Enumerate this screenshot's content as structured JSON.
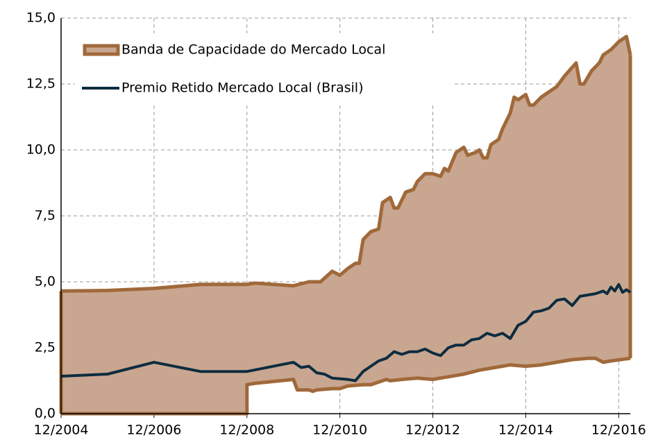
{
  "chart_data": {
    "type": "line",
    "xlim": [
      "12/2004",
      "03/2017"
    ],
    "xticks": [
      "12/2004",
      "12/2006",
      "12/2008",
      "12/2010",
      "12/2012",
      "12/2014",
      "12/2016"
    ],
    "ylim": [
      0,
      15
    ],
    "yticks": [
      {
        "value": 0,
        "label": "0,0"
      },
      {
        "value": 2.5,
        "label": "2,5"
      },
      {
        "value": 5,
        "label": "5,0"
      },
      {
        "value": 7.5,
        "label": "7,5"
      },
      {
        "value": 10,
        "label": "10,0"
      },
      {
        "value": 12.5,
        "label": "12,5"
      },
      {
        "value": 15,
        "label": "15,0"
      }
    ],
    "grid": true,
    "legend": "top-left",
    "series": [
      {
        "name": "Banda de Capacidade do Mercado Local",
        "type": "band",
        "color": "#a0693a",
        "fill": "#c9a690",
        "upper": {
          "x": [
            "12/2004",
            "12/2005",
            "12/2006",
            "12/2007",
            "12/2008",
            "02/2009",
            "12/2009",
            "04/2010",
            "07/2010",
            "10/2010",
            "12/2010",
            "02/2011",
            "04/2011",
            "05/2011",
            "06/2011",
            "08/2011",
            "10/2011",
            "11/2011",
            "01/2012",
            "02/2012",
            "03/2012",
            "05/2012",
            "07/2012",
            "08/2012",
            "10/2012",
            "12/2012",
            "02/2013",
            "03/2013",
            "04/2013",
            "06/2013",
            "08/2013",
            "09/2013",
            "11/2013",
            "12/2013",
            "01/2014",
            "02/2014",
            "03/2014",
            "05/2014",
            "06/2014",
            "08/2014",
            "09/2014",
            "10/2014",
            "12/2014",
            "01/2015",
            "02/2015",
            "04/2015",
            "06/2015",
            "08/2015",
            "10/2015",
            "01/2016",
            "02/2016",
            "03/2016",
            "05/2016",
            "07/2016",
            "08/2016",
            "10/2016",
            "12/2016",
            "02/2017",
            "03/2017"
          ],
          "values": [
            4.65,
            4.67,
            4.75,
            4.9,
            4.9,
            4.95,
            4.85,
            5.0,
            5.0,
            5.4,
            5.25,
            5.5,
            5.7,
            5.7,
            6.6,
            6.9,
            7.0,
            8.0,
            8.2,
            7.8,
            7.8,
            8.4,
            8.5,
            8.8,
            9.1,
            9.1,
            9.0,
            9.3,
            9.2,
            9.9,
            10.1,
            9.8,
            9.9,
            10.0,
            9.7,
            9.7,
            10.2,
            10.4,
            10.8,
            11.4,
            12.0,
            11.9,
            12.1,
            11.7,
            11.7,
            12.0,
            12.2,
            12.4,
            12.8,
            13.3,
            12.5,
            12.5,
            13.0,
            13.3,
            13.6,
            13.8,
            14.1,
            14.3,
            13.6
          ]
        },
        "lower": {
          "x": [
            "12/2004",
            "12/2008",
            "12/2008",
            "02/2009",
            "12/2009",
            "01/2010",
            "04/2010",
            "05/2010",
            "06/2010",
            "10/2010",
            "12/2010",
            "02/2011",
            "06/2011",
            "08/2011",
            "12/2011",
            "01/2012",
            "04/2012",
            "08/2012",
            "12/2012",
            "04/2013",
            "08/2013",
            "12/2013",
            "04/2014",
            "08/2014",
            "12/2014",
            "04/2015",
            "08/2015",
            "12/2015",
            "04/2016",
            "06/2016",
            "08/2016",
            "10/2016",
            "03/2017"
          ],
          "values": [
            0,
            0,
            1.1,
            1.15,
            1.3,
            0.9,
            0.9,
            0.85,
            0.9,
            0.95,
            0.95,
            1.05,
            1.1,
            1.1,
            1.3,
            1.25,
            1.3,
            1.35,
            1.3,
            1.4,
            1.5,
            1.65,
            1.75,
            1.85,
            1.8,
            1.85,
            1.95,
            2.05,
            2.1,
            2.1,
            1.95,
            2.0,
            2.1
          ]
        }
      },
      {
        "name": "Premio Retido Mercado Local (Brasil)",
        "type": "line",
        "color": "#0d2c40",
        "x": [
          "12/2004",
          "12/2005",
          "12/2006",
          "12/2007",
          "12/2008",
          "12/2009",
          "02/2010",
          "04/2010",
          "06/2010",
          "08/2010",
          "10/2010",
          "02/2011",
          "04/2011",
          "06/2011",
          "08/2011",
          "10/2011",
          "12/2011",
          "02/2012",
          "04/2012",
          "06/2012",
          "08/2012",
          "10/2012",
          "12/2012",
          "02/2013",
          "04/2013",
          "06/2013",
          "08/2013",
          "10/2013",
          "12/2013",
          "02/2014",
          "04/2014",
          "06/2014",
          "08/2014",
          "10/2014",
          "12/2014",
          "02/2015",
          "04/2015",
          "06/2015",
          "08/2015",
          "10/2015",
          "12/2015",
          "02/2016",
          "04/2016",
          "06/2016",
          "08/2016",
          "09/2016",
          "10/2016",
          "11/2016",
          "12/2016",
          "01/2017",
          "02/2017",
          "03/2017"
        ],
        "values": [
          1.42,
          1.5,
          1.95,
          1.6,
          1.6,
          1.95,
          1.75,
          1.8,
          1.55,
          1.5,
          1.35,
          1.3,
          1.25,
          1.6,
          1.8,
          2.0,
          2.1,
          2.35,
          2.25,
          2.35,
          2.35,
          2.45,
          2.3,
          2.2,
          2.5,
          2.6,
          2.6,
          2.8,
          2.85,
          3.05,
          2.95,
          3.05,
          2.85,
          3.35,
          3.5,
          3.85,
          3.9,
          4.0,
          4.3,
          4.35,
          4.1,
          4.45,
          4.5,
          4.55,
          4.65,
          4.55,
          4.8,
          4.65,
          4.9,
          4.6,
          4.7,
          4.6
        ]
      }
    ]
  }
}
